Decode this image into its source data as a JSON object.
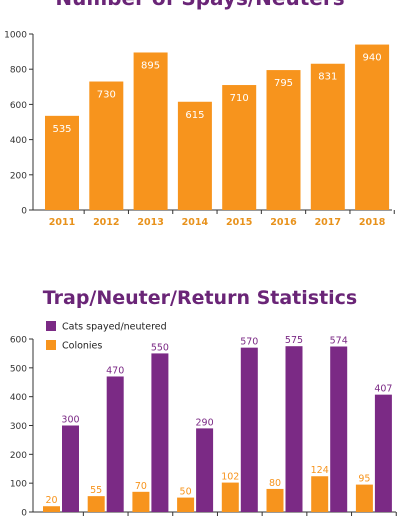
{
  "colors": {
    "orange": "#f7941d",
    "purple": "#7b2a85",
    "title": "#6a2577",
    "year_label": "#e8921c",
    "axis": "#333333"
  },
  "chart_data": [
    {
      "type": "bar",
      "title": "Number of Spays/Neuters",
      "categories": [
        "2011",
        "2012",
        "2013",
        "2014",
        "2015",
        "2016",
        "2017",
        "2018"
      ],
      "values": [
        535,
        730,
        895,
        615,
        710,
        795,
        831,
        940
      ],
      "data_labels": [
        "535",
        "730",
        "895",
        "615",
        "710",
        "795",
        "831",
        "940"
      ],
      "y_ticks": [
        "0",
        "200",
        "400",
        "600",
        "800",
        "1000"
      ],
      "ylim": [
        0,
        1000
      ],
      "xlabel": "",
      "ylabel": "",
      "grid": false,
      "bar_color": "#f7941d"
    },
    {
      "type": "bar",
      "title": "Trap/Neuter/Return Statistics",
      "categories": [
        "",
        "",
        "",
        "",
        "",
        "",
        "",
        ""
      ],
      "series": [
        {
          "name": "Colonies",
          "values": [
            20,
            55,
            70,
            50,
            102,
            80,
            124,
            95
          ],
          "data_labels": [
            "20",
            "55",
            "70",
            "50",
            "102",
            "80",
            "124",
            "95"
          ],
          "color": "#f7941d"
        },
        {
          "name": "Cats spayed/neutered",
          "values": [
            300,
            470,
            550,
            290,
            570,
            575,
            574,
            407
          ],
          "data_labels": [
            "300",
            "470",
            "550",
            "290",
            "570",
            "575",
            "574",
            "407"
          ],
          "color": "#7b2a85"
        }
      ],
      "legend_order": [
        "Cats spayed/neutered",
        "Colonies"
      ],
      "legend_position": "top-left",
      "y_ticks": [
        "0",
        "100",
        "200",
        "300",
        "400",
        "500",
        "600"
      ],
      "ylim": [
        0,
        600
      ],
      "xlabel": "",
      "ylabel": "",
      "grid": false
    }
  ]
}
